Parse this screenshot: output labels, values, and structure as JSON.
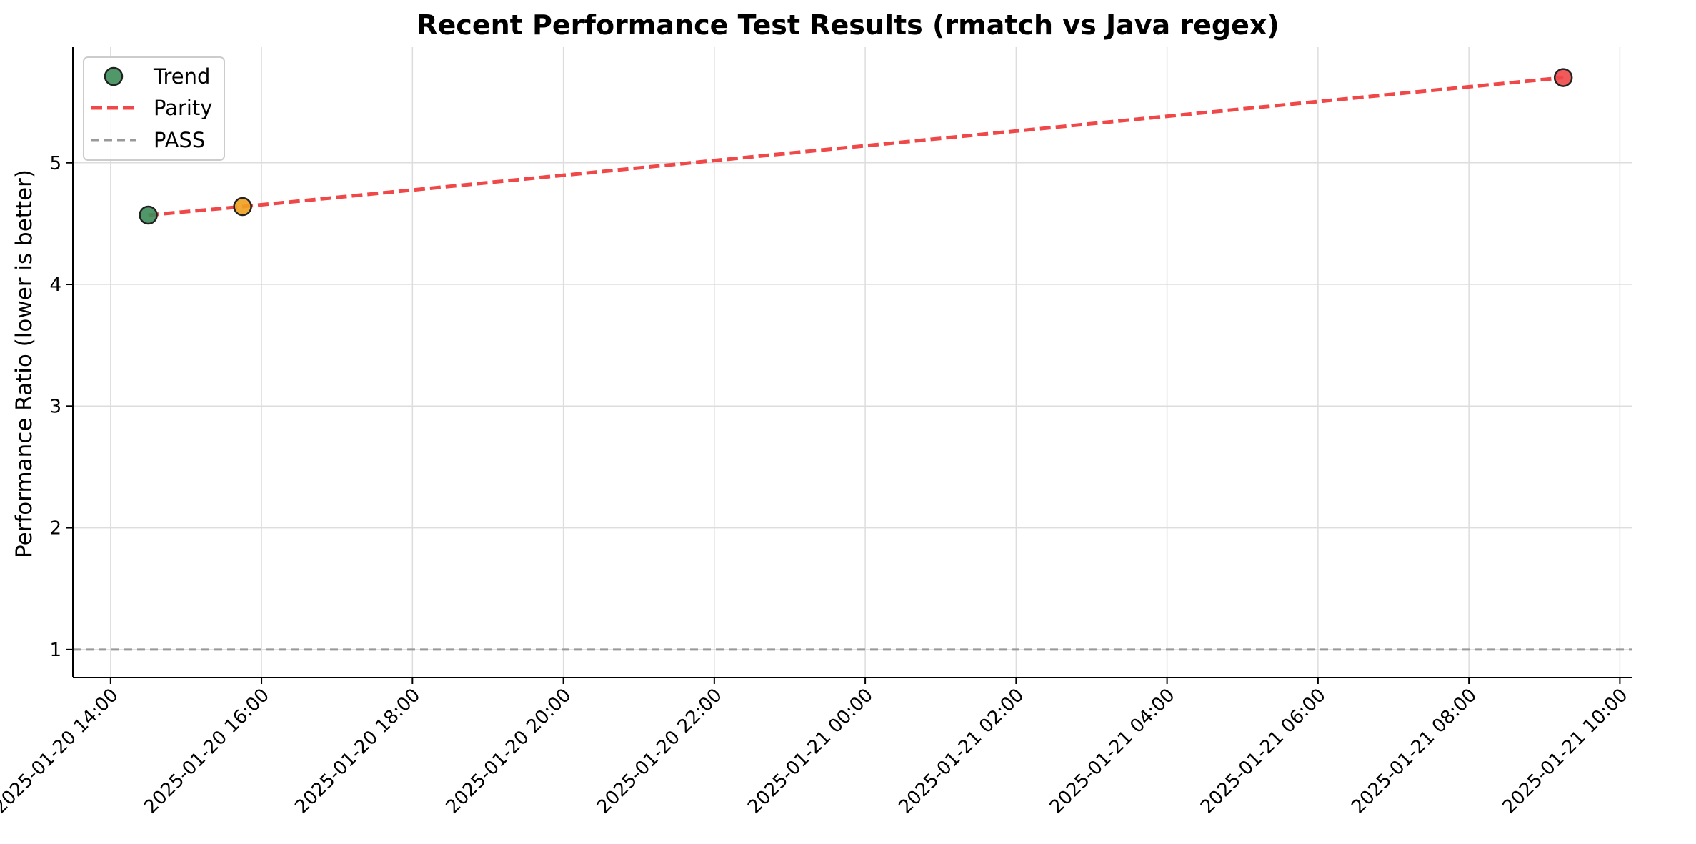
{
  "chart_data": {
    "type": "line",
    "title": "Recent Performance Test Results (rmatch vs Java regex)",
    "xlabel": "",
    "ylabel": "Performance Ratio (lower is better)",
    "x_ticks": [
      "2025-01-20 14:00",
      "2025-01-20 16:00",
      "2025-01-20 18:00",
      "2025-01-20 20:00",
      "2025-01-20 22:00",
      "2025-01-21 00:00",
      "2025-01-21 02:00",
      "2025-01-21 04:00",
      "2025-01-21 06:00",
      "2025-01-21 08:00",
      "2025-01-21 10:00"
    ],
    "xlim": [
      "2025-01-20 13:30",
      "2025-01-21 10:10"
    ],
    "y_ticks": [
      1,
      2,
      3,
      4,
      5
    ],
    "ylim": [
      0.77,
      5.95
    ],
    "grid": true,
    "legend_position": "top-left",
    "points": [
      {
        "x": "2025-01-20 14:30",
        "y": 4.57,
        "color": "#3d8c5a"
      },
      {
        "x": "2025-01-20 15:45",
        "y": 4.64,
        "color": "#f0a020"
      },
      {
        "x": "2025-01-21 09:15",
        "y": 5.7,
        "color": "#f04848"
      }
    ],
    "series": [
      {
        "name": "Trend",
        "type": "scatter",
        "x": [
          "2025-01-20 14:30",
          "2025-01-20 15:45",
          "2025-01-21 09:15"
        ],
        "values": [
          4.57,
          4.64,
          5.7
        ]
      },
      {
        "name": "Parity",
        "type": "line",
        "x": [
          "2025-01-20 14:30",
          "2025-01-20 15:45",
          "2025-01-21 09:15"
        ],
        "values": [
          4.57,
          4.64,
          5.7
        ],
        "color": "#f04848",
        "dashed": true
      },
      {
        "name": "PASS",
        "type": "hline",
        "y": 1.0,
        "color": "#999999",
        "dashed": true
      }
    ],
    "legend": [
      {
        "label": "Trend",
        "marker": "circle",
        "color": "#3d8c5a"
      },
      {
        "label": "Parity",
        "marker": "dashed-line",
        "color": "#f04848"
      },
      {
        "label": "PASS",
        "marker": "dashed-line",
        "color": "#999999"
      }
    ]
  }
}
